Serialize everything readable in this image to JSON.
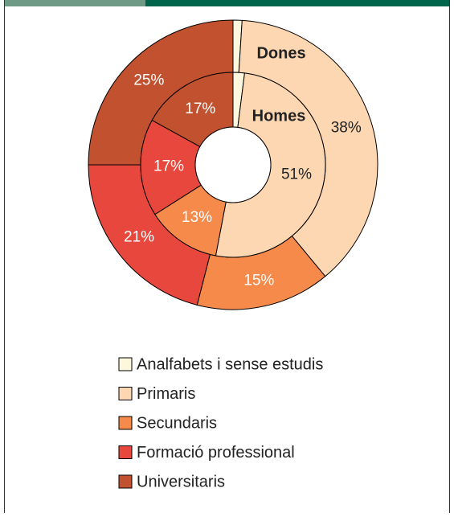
{
  "chart_data": {
    "type": "donut",
    "categories": [
      "Analfabets i sense estudis",
      "Primaris",
      "Secundaris",
      "Formació professional",
      "Universitaris"
    ],
    "colors": [
      "#fdf7dd",
      "#fdd6b2",
      "#f58a4b",
      "#e8473d",
      "#c1512f"
    ],
    "series": [
      {
        "name": "Dones",
        "values": [
          1,
          38,
          15,
          21,
          25
        ],
        "value_labels": [
          null,
          "38%",
          "15%",
          "21%",
          "25%"
        ]
      },
      {
        "name": "Homes",
        "values": [
          2,
          51,
          13,
          17,
          17
        ],
        "value_labels": [
          null,
          "51%",
          "13%",
          "17%",
          "17%"
        ]
      }
    ]
  }
}
